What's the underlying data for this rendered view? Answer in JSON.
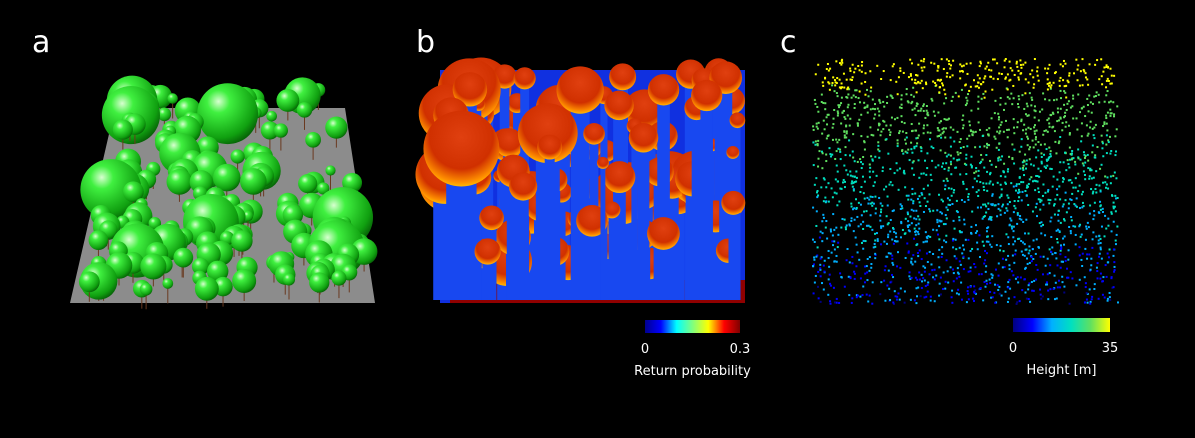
{
  "panels": [
    {
      "label": "a"
    },
    {
      "label": "b",
      "colorbar": {
        "label": "Return probability",
        "lim": [
          0,
          0.3
        ],
        "ticks": [
          0,
          0.3
        ],
        "colors": [
          "#00008f",
          "#0000ff",
          "#00ffff",
          "#7fff7f",
          "#ffff00",
          "#ff0000",
          "#7f0000"
        ]
      }
    },
    {
      "label": "c",
      "colorbar": {
        "label": "Height [m]",
        "lim": [
          0,
          35
        ],
        "ticks": [
          0,
          35
        ],
        "colors": [
          "#000080",
          "#0000ff",
          "#00b0ff",
          "#00e0c0",
          "#60e060",
          "#ffff00"
        ]
      }
    }
  ]
}
